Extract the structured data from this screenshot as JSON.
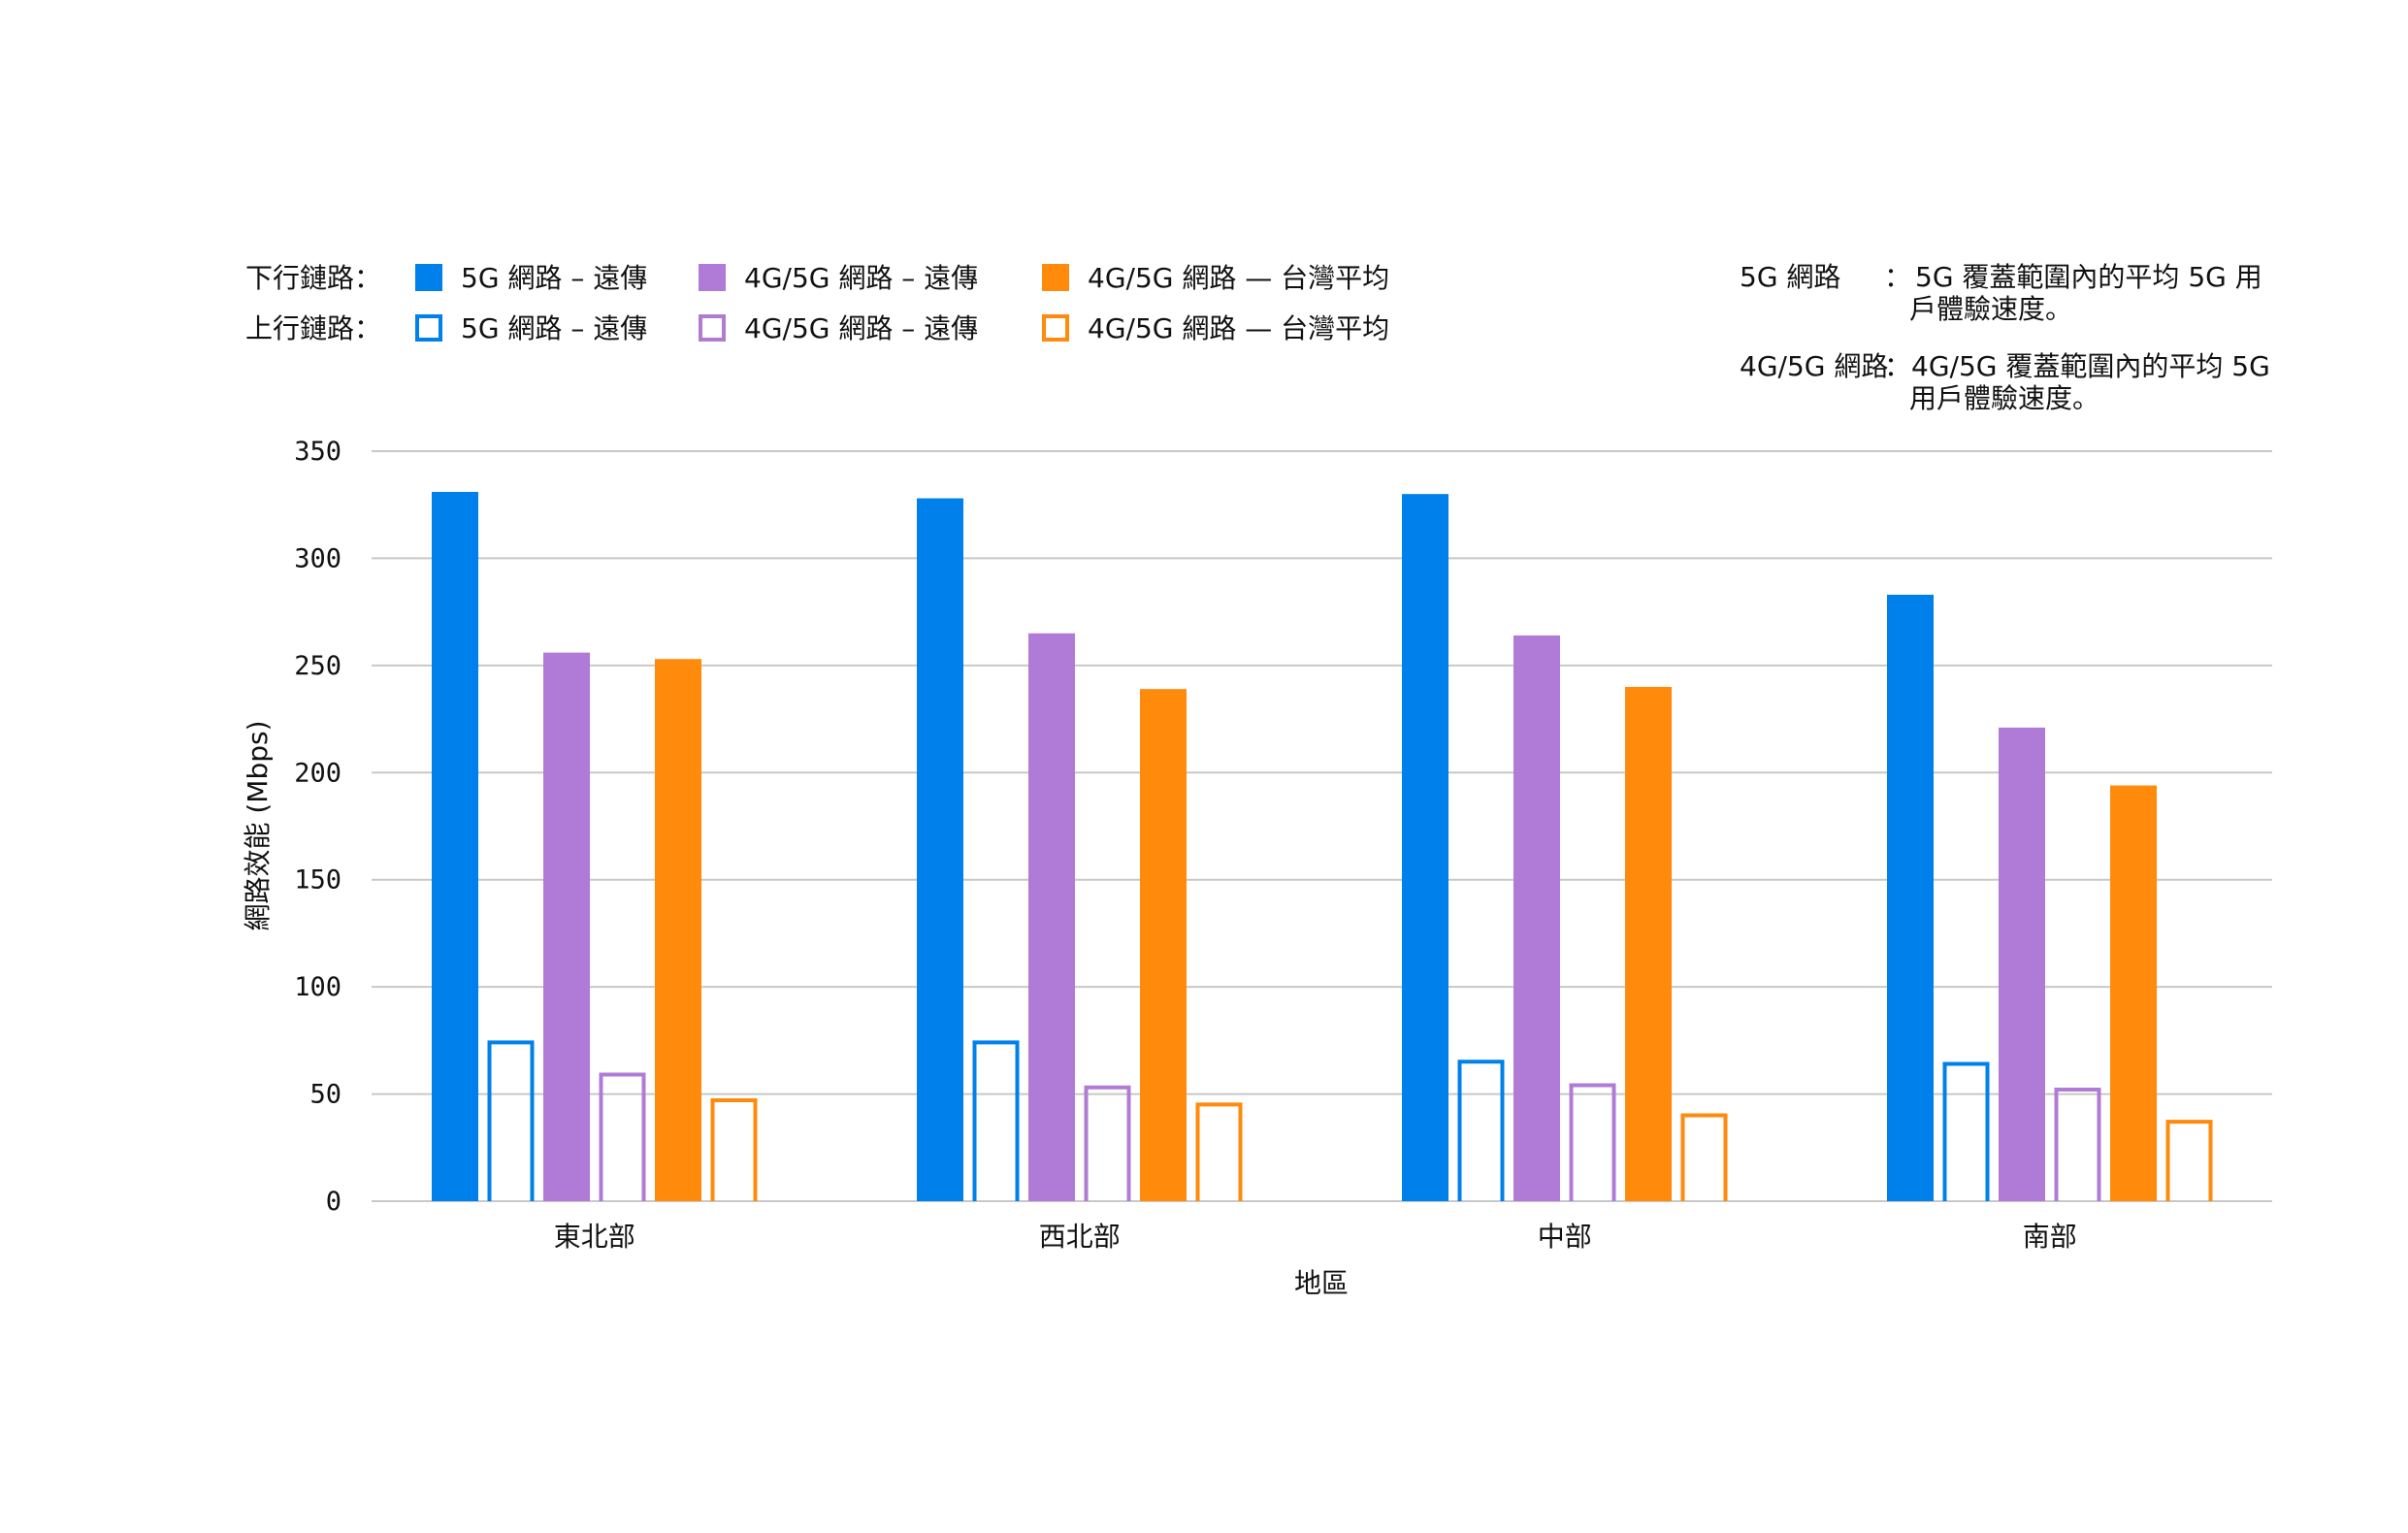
{
  "chart_data": {
    "type": "bar",
    "xlabel": "地區",
    "ylabel": "網路效能 (Mbps)",
    "ylim": [
      0,
      350
    ],
    "yticks": [
      0,
      50,
      100,
      150,
      200,
      250,
      300,
      350
    ],
    "grid": true,
    "legend_placement": "top",
    "categories": [
      "東北部",
      "西北部",
      "中部",
      "南部"
    ],
    "legend": {
      "download_label": "下行鏈路：",
      "upload_label": "上行鏈路："
    },
    "series": [
      {
        "name": "5G 網路 – 遠傳",
        "direction": "download",
        "color": "#0080EA",
        "fill": "solid",
        "values": [
          331,
          328,
          330,
          283
        ]
      },
      {
        "name": "5G 網路 – 遠傳",
        "direction": "upload",
        "color": "#0080EA",
        "fill": "outline",
        "values": [
          75,
          75,
          66,
          65
        ]
      },
      {
        "name": "4G/5G 網路 – 遠傳",
        "direction": "download",
        "color": "#B07BD6",
        "fill": "solid",
        "values": [
          256,
          265,
          264,
          221
        ]
      },
      {
        "name": "4G/5G 網路 – 遠傳",
        "direction": "upload",
        "color": "#B07BD6",
        "fill": "outline",
        "values": [
          60,
          54,
          55,
          53
        ]
      },
      {
        "name": "4G/5G 網路 — 台灣平均",
        "direction": "download",
        "color": "#FF8A0C",
        "fill": "solid",
        "values": [
          253,
          239,
          240,
          194
        ]
      },
      {
        "name": "4G/5G 網路 — 台灣平均",
        "direction": "upload",
        "color": "#FF8A0C",
        "fill": "outline",
        "values": [
          48,
          46,
          41,
          38
        ]
      }
    ],
    "notes": [
      {
        "term": "5G 網路",
        "sep": "：",
        "lines": [
          "5G 覆蓋範圍內的平均 5G 用",
          "戶體驗速度。"
        ]
      },
      {
        "term": "4G/5G 網路",
        "sep": "：",
        "lines": [
          "4G/5G 覆蓋範圍內的平均 5G",
          "用戶體驗速度。"
        ]
      }
    ]
  }
}
